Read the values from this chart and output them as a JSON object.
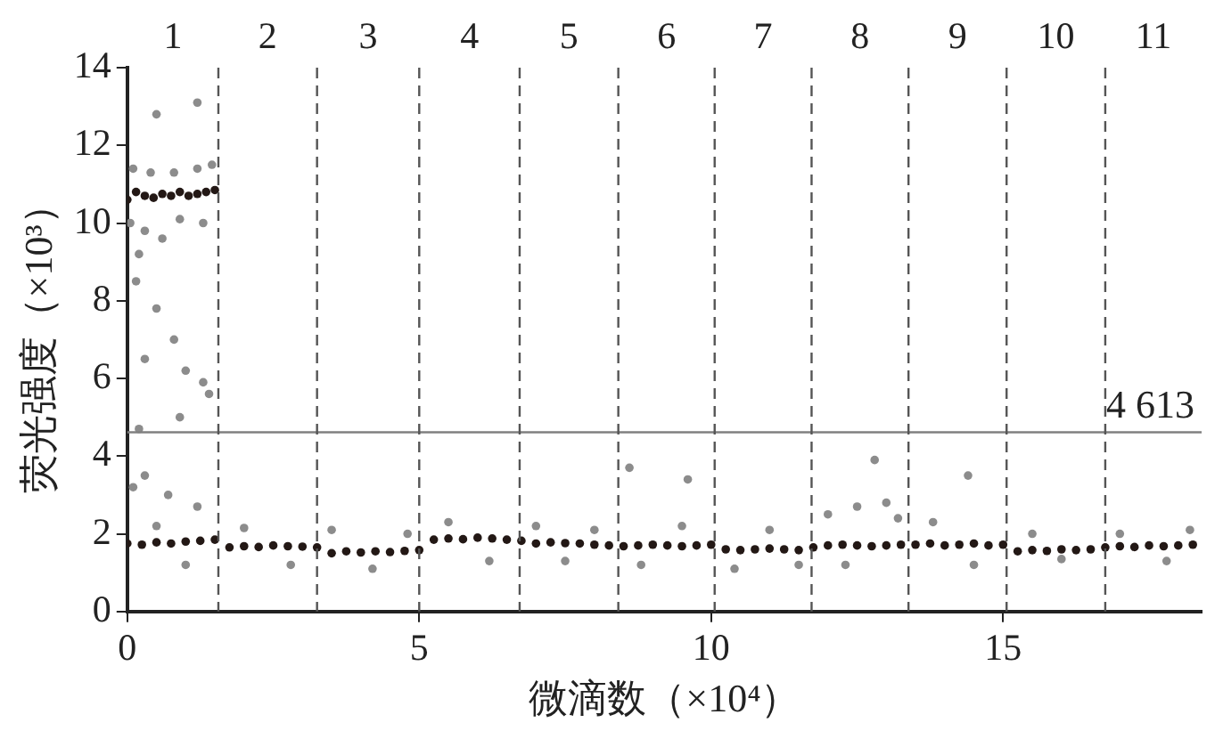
{
  "chart_data": {
    "type": "scatter",
    "xlabel": "微滴数（×10⁴）",
    "ylabel": "荧光强度（×10³）",
    "xlim": [
      0,
      18.4
    ],
    "ylim": [
      0,
      14
    ],
    "xticks": [
      0,
      5,
      10,
      15
    ],
    "yticks": [
      0,
      2,
      4,
      6,
      8,
      10,
      12,
      14
    ],
    "grid": false,
    "legend": false,
    "marker": "circle",
    "annotations": [
      "1",
      "2",
      "3",
      "4",
      "5",
      "6",
      "7",
      "8",
      "9",
      "10",
      "11"
    ],
    "ref_lines": [
      {
        "axis": "y",
        "value": 4.613,
        "label": "4 613",
        "color": "#808080",
        "line_style": "solid"
      },
      {
        "axis": "x",
        "value": 1.56,
        "color": "#555555",
        "line_style": "dashed"
      },
      {
        "axis": "x",
        "value": 3.25,
        "color": "#555555",
        "line_style": "dashed"
      },
      {
        "axis": "x",
        "value": 5.0,
        "color": "#555555",
        "line_style": "dashed"
      },
      {
        "axis": "x",
        "value": 6.72,
        "color": "#555555",
        "line_style": "dashed"
      },
      {
        "axis": "x",
        "value": 8.41,
        "color": "#555555",
        "line_style": "dashed"
      },
      {
        "axis": "x",
        "value": 10.06,
        "color": "#555555",
        "line_style": "dashed"
      },
      {
        "axis": "x",
        "value": 11.72,
        "color": "#555555",
        "line_style": "dashed"
      },
      {
        "axis": "x",
        "value": 13.38,
        "color": "#555555",
        "line_style": "dashed"
      },
      {
        "axis": "x",
        "value": 15.06,
        "color": "#555555",
        "line_style": "dashed"
      },
      {
        "axis": "x",
        "value": 16.75,
        "color": "#555555",
        "line_style": "dashed"
      }
    ],
    "series": [
      {
        "color": "#8c8c8c",
        "x": [
          0.1,
          0.4,
          0.8,
          1.2,
          1.45,
          0.05,
          0.3,
          0.6,
          0.2,
          0.9,
          1.3,
          0.5,
          1.2,
          0.15,
          0.5,
          0.8,
          0.3,
          1.0,
          1.3,
          0.9,
          0.2,
          1.4,
          0.3,
          0.7,
          1.2,
          0.1,
          0.5,
          1.0,
          2.0,
          2.8,
          3.5,
          4.2,
          4.8,
          5.5,
          6.2,
          7.0,
          7.5,
          8.0,
          8.8,
          9.5,
          10.4,
          11.0,
          11.5,
          12.0,
          12.5,
          13.0,
          13.2,
          12.3,
          13.8,
          14.5,
          14.4,
          15.5,
          16.0,
          17.0,
          17.8,
          18.2,
          9.6,
          8.6,
          12.8
        ],
        "values": [
          11.4,
          11.3,
          11.3,
          11.4,
          11.5,
          10.0,
          9.8,
          9.6,
          9.2,
          10.1,
          10.0,
          12.8,
          13.1,
          8.5,
          7.8,
          7.0,
          6.5,
          6.2,
          5.9,
          5.0,
          4.7,
          5.6,
          3.5,
          3.0,
          2.7,
          3.2,
          2.2,
          1.2,
          2.15,
          1.2,
          2.1,
          1.1,
          2.0,
          2.3,
          1.3,
          2.2,
          1.3,
          2.1,
          1.2,
          2.2,
          1.1,
          2.1,
          1.2,
          2.5,
          2.7,
          2.8,
          2.4,
          1.2,
          2.3,
          1.2,
          3.5,
          2.0,
          1.35,
          2.0,
          1.3,
          2.1,
          3.4,
          3.7,
          3.9
        ]
      },
      {
        "color": "#231815",
        "x": [
          0,
          0.25,
          0.5,
          0.75,
          1,
          1.25,
          1.5,
          1.75,
          2,
          2.25,
          2.5,
          2.75,
          3,
          3.25,
          3.5,
          3.75,
          4,
          4.25,
          4.5,
          4.75,
          5,
          5.25,
          5.5,
          5.75,
          6,
          6.25,
          6.5,
          6.75,
          7,
          7.25,
          7.5,
          7.75,
          8,
          8.25,
          8.5,
          8.75,
          9,
          9.25,
          9.5,
          9.75,
          10,
          10.25,
          10.5,
          10.75,
          11,
          11.25,
          11.5,
          11.75,
          12,
          12.25,
          12.5,
          12.75,
          13,
          13.25,
          13.5,
          13.75,
          14,
          14.25,
          14.5,
          14.75,
          15,
          15.25,
          15.5,
          15.75,
          16,
          16.25,
          16.5,
          16.75,
          17,
          17.25,
          17.5,
          17.75,
          18,
          18.25,
          0,
          0.15,
          0.3,
          0.45,
          0.6,
          0.75,
          0.9,
          1.05,
          1.2,
          1.35,
          1.5
        ],
        "values": [
          1.75,
          1.72,
          1.78,
          1.75,
          1.8,
          1.82,
          1.85,
          1.65,
          1.68,
          1.66,
          1.7,
          1.68,
          1.67,
          1.65,
          1.5,
          1.55,
          1.52,
          1.55,
          1.53,
          1.56,
          1.58,
          1.85,
          1.88,
          1.86,
          1.9,
          1.88,
          1.85,
          1.82,
          1.75,
          1.78,
          1.76,
          1.75,
          1.72,
          1.7,
          1.68,
          1.7,
          1.72,
          1.7,
          1.68,
          1.7,
          1.72,
          1.6,
          1.58,
          1.6,
          1.62,
          1.6,
          1.58,
          1.65,
          1.7,
          1.72,
          1.7,
          1.68,
          1.7,
          1.72,
          1.72,
          1.75,
          1.7,
          1.72,
          1.75,
          1.7,
          1.72,
          1.55,
          1.58,
          1.56,
          1.6,
          1.58,
          1.6,
          1.65,
          1.68,
          1.66,
          1.7,
          1.68,
          1.7,
          1.72,
          10.6,
          10.8,
          10.7,
          10.65,
          10.75,
          10.7,
          10.8,
          10.7,
          10.75,
          10.8,
          10.85
        ]
      }
    ]
  }
}
